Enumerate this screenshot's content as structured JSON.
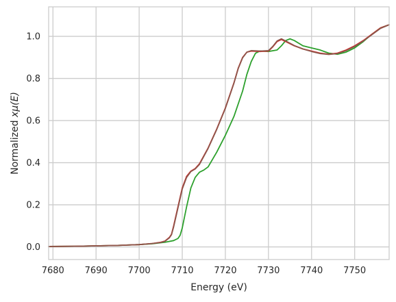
{
  "chart_data": {
    "type": "line",
    "title": "",
    "xlabel": "Energy (eV)",
    "ylabel_prefix": "Normalized ",
    "ylabel_math": "xμ(E)",
    "xlim": [
      7679,
      7758
    ],
    "ylim": [
      -0.06,
      1.14
    ],
    "xticks": [
      7680,
      7690,
      7700,
      7710,
      7720,
      7730,
      7740,
      7750
    ],
    "xtick_labels": [
      "7680",
      "7690",
      "7700",
      "7710",
      "7720",
      "7730",
      "7740",
      "7750"
    ],
    "yticks": [
      0.0,
      0.2,
      0.4,
      0.6,
      0.8,
      1.0
    ],
    "ytick_labels": [
      "0.0",
      "0.2",
      "0.4",
      "0.6",
      "0.8",
      "1.0"
    ],
    "grid": true,
    "style": {
      "grid_color": "#cccccc",
      "spine_color": "#cccccc",
      "text_color": "#262626"
    },
    "series": [
      {
        "color": "#2ca02c",
        "x": [
          7679,
          7685,
          7690,
          7695,
          7700,
          7703,
          7706,
          7708,
          7709,
          7709.5,
          7710,
          7711,
          7712,
          7713,
          7714,
          7715,
          7716,
          7718,
          7720,
          7722,
          7724,
          7725,
          7726,
          7727,
          7728,
          7730,
          7732,
          7733,
          7734,
          7735,
          7736,
          7738,
          7740,
          7742,
          7744,
          7746,
          7748,
          7750,
          7752,
          7754,
          7756,
          7758
        ],
        "values": [
          0.002,
          0.003,
          0.005,
          0.007,
          0.011,
          0.015,
          0.022,
          0.03,
          0.04,
          0.055,
          0.09,
          0.19,
          0.28,
          0.33,
          0.355,
          0.365,
          0.38,
          0.45,
          0.53,
          0.62,
          0.74,
          0.82,
          0.88,
          0.92,
          0.93,
          0.928,
          0.935,
          0.955,
          0.98,
          0.988,
          0.98,
          0.955,
          0.945,
          0.935,
          0.92,
          0.915,
          0.925,
          0.945,
          0.975,
          1.01,
          1.04,
          1.055
        ]
      },
      {
        "color": "#d62728",
        "x": [
          7679,
          7685,
          7690,
          7695,
          7700,
          7703,
          7705,
          7706,
          7707,
          7707.5,
          7708,
          7709,
          7710,
          7711,
          7712,
          7713,
          7714,
          7716,
          7718,
          7720,
          7722,
          7723,
          7724,
          7725,
          7726,
          7728,
          7730,
          7731,
          7732,
          7733,
          7734,
          7736,
          7738,
          7740,
          7742,
          7744,
          7746,
          7748,
          7750,
          7752,
          7754,
          7756,
          7758
        ],
        "values": [
          0.002,
          0.003,
          0.005,
          0.007,
          0.011,
          0.016,
          0.022,
          0.028,
          0.045,
          0.06,
          0.1,
          0.19,
          0.28,
          0.335,
          0.36,
          0.372,
          0.395,
          0.47,
          0.56,
          0.66,
          0.78,
          0.85,
          0.9,
          0.925,
          0.93,
          0.928,
          0.93,
          0.95,
          0.975,
          0.985,
          0.975,
          0.955,
          0.94,
          0.93,
          0.92,
          0.915,
          0.92,
          0.935,
          0.955,
          0.98,
          1.01,
          1.04,
          1.055
        ]
      },
      {
        "color": "#8c564b",
        "x": [
          7679,
          7685,
          7690,
          7695,
          7700,
          7703,
          7705,
          7706,
          7707,
          7707.5,
          7708,
          7709,
          7710,
          7711,
          7712,
          7713,
          7714,
          7716,
          7718,
          7720,
          7722,
          7723,
          7724,
          7725,
          7726,
          7728,
          7730,
          7731,
          7732,
          7733,
          7734,
          7736,
          7738,
          7740,
          7742,
          7744,
          7746,
          7748,
          7750,
          7752,
          7754,
          7756,
          7758
        ],
        "values": [
          0.002,
          0.003,
          0.005,
          0.007,
          0.011,
          0.016,
          0.021,
          0.027,
          0.043,
          0.058,
          0.095,
          0.185,
          0.275,
          0.33,
          0.358,
          0.37,
          0.392,
          0.468,
          0.558,
          0.658,
          0.778,
          0.848,
          0.898,
          0.925,
          0.932,
          0.93,
          0.932,
          0.952,
          0.978,
          0.988,
          0.978,
          0.956,
          0.94,
          0.928,
          0.918,
          0.914,
          0.918,
          0.932,
          0.952,
          0.978,
          1.008,
          1.038,
          1.055
        ]
      }
    ]
  }
}
